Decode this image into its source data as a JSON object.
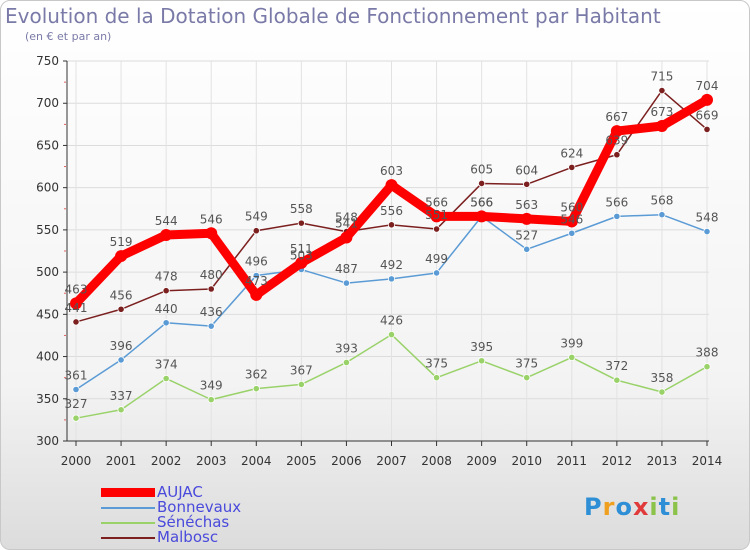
{
  "header": {
    "title": "Evolution de la Dotation Globale de Fonctionnement par Habitant",
    "subtitle": "(en € et par an)"
  },
  "logo": {
    "text": "ProXiti",
    "letters": [
      "P",
      "r",
      "o",
      "x",
      "i",
      "t",
      "i"
    ],
    "colors": [
      "#2e8fd6",
      "#f0a020",
      "#2e8fd6",
      "#e03a3a",
      "#8bc34a",
      "#2e8fd6",
      "#8bc34a"
    ]
  },
  "chart_data": {
    "type": "line",
    "title": "Evolution de la Dotation Globale de Fonctionnement par Habitant",
    "ylabel": "(en € et par an)",
    "xlabel": "",
    "x": [
      "2000",
      "2001",
      "2002",
      "2003",
      "2004",
      "2005",
      "2006",
      "2007",
      "2008",
      "2009",
      "2010",
      "2011",
      "2012",
      "2013",
      "2014"
    ],
    "ylim": [
      300,
      750
    ],
    "yticks": [
      300,
      350,
      400,
      450,
      500,
      550,
      600,
      650,
      700,
      750
    ],
    "grid": true,
    "legend": "bottom-left",
    "series": [
      {
        "name": "AUJAC",
        "color": "#ff0000",
        "emphasis": true,
        "values": [
          463,
          519,
          544,
          546,
          473,
          511,
          541,
          603,
          566,
          566,
          563,
          560,
          667,
          673,
          704
        ]
      },
      {
        "name": "Bonnevaux",
        "color": "#5b9bd5",
        "emphasis": false,
        "values": [
          361,
          396,
          440,
          436,
          496,
          503,
          487,
          492,
          499,
          566,
          527,
          546,
          566,
          568,
          548
        ]
      },
      {
        "name": "Sénéchas",
        "color": "#9ad26a",
        "emphasis": false,
        "values": [
          327,
          337,
          374,
          349,
          362,
          367,
          393,
          426,
          375,
          395,
          375,
          399,
          372,
          358,
          388
        ]
      },
      {
        "name": "Malbosc",
        "color": "#7b1f1f",
        "emphasis": false,
        "values": [
          441,
          456,
          478,
          480,
          549,
          558,
          548,
          556,
          551,
          605,
          604,
          624,
          639,
          715,
          669
        ]
      }
    ]
  }
}
